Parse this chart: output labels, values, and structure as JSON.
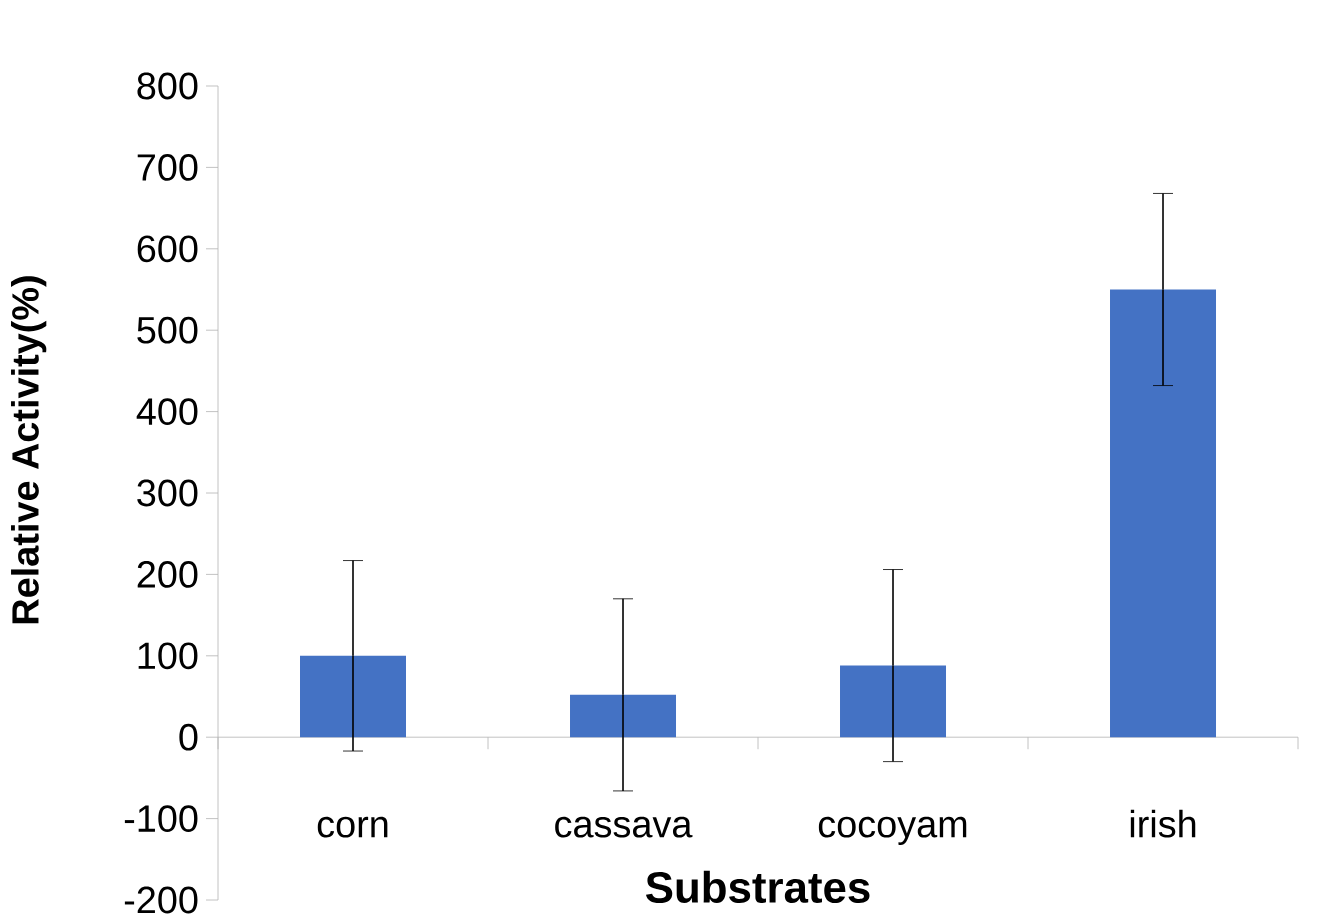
{
  "chart_data": {
    "type": "bar",
    "xlabel": "Substrates",
    "ylabel": "Relative Activity(%)",
    "categories": [
      "corn",
      "cassava",
      "cocoyam",
      "irish"
    ],
    "values": [
      100,
      52,
      88,
      550
    ],
    "errors": [
      117,
      118,
      118,
      118
    ],
    "color": "#4472c4",
    "ylim": [
      -200,
      800
    ],
    "yticks": [
      -200,
      -100,
      0,
      100,
      200,
      300,
      400,
      500,
      600,
      700,
      800
    ],
    "grid": false
  }
}
